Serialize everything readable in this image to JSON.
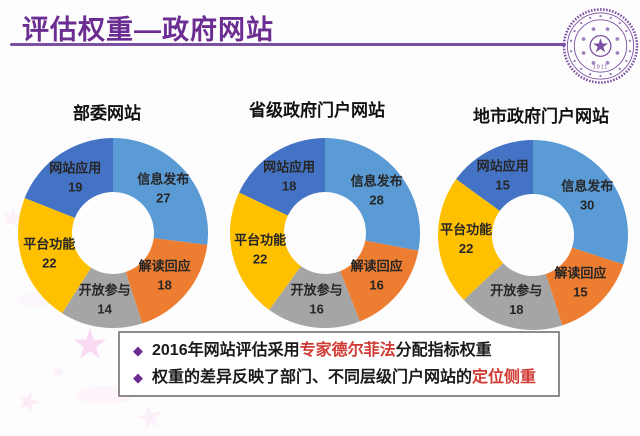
{
  "header": {
    "title": "评估权重—政府网站"
  },
  "logo": {
    "icon": "tsinghua-university-seal",
    "year_text": "1911"
  },
  "colors": {
    "accent_purple": "#6b2d91",
    "underline_purple": "#7a50a3",
    "highlight_red": "#d03a34",
    "chart_title_black": "#111111",
    "slice_label": "#262626",
    "series": {
      "信息发布": "#5B9BD5",
      "解读回应": "#ED7D31",
      "开放参与": "#A5A5A5",
      "平台功能": "#FFC000",
      "网站应用": "#4472C4"
    }
  },
  "chart_data": [
    {
      "type": "pie",
      "subtype": "donut",
      "title": "部委网站",
      "categories": [
        "信息发布",
        "解读回应",
        "开放参与",
        "平台功能",
        "网站应用"
      ],
      "values": [
        27,
        18,
        14,
        22,
        19
      ],
      "colors": [
        "#5B9BD5",
        "#ED7D31",
        "#A5A5A5",
        "#FFC000",
        "#4472C4"
      ],
      "start_angle_deg": 0,
      "direction": "clockwise",
      "labels": "category and value inside slices",
      "legend": "none"
    },
    {
      "type": "pie",
      "subtype": "donut",
      "title": "省级政府门户网站",
      "categories": [
        "信息发布",
        "解读回应",
        "开放参与",
        "平台功能",
        "网站应用"
      ],
      "values": [
        28,
        16,
        16,
        22,
        18
      ],
      "colors": [
        "#5B9BD5",
        "#ED7D31",
        "#A5A5A5",
        "#FFC000",
        "#4472C4"
      ],
      "start_angle_deg": 0,
      "direction": "clockwise",
      "labels": "category and value inside slices",
      "legend": "none"
    },
    {
      "type": "pie",
      "subtype": "donut",
      "title": "地市政府门户网站",
      "categories": [
        "信息发布",
        "解读回应",
        "开放参与",
        "平台功能",
        "网站应用"
      ],
      "values": [
        30,
        15,
        18,
        22,
        15
      ],
      "colors": [
        "#5B9BD5",
        "#ED7D31",
        "#A5A5A5",
        "#FFC000",
        "#4472C4"
      ],
      "start_angle_deg": 0,
      "direction": "clockwise",
      "labels": "category and value inside slices",
      "legend": "none"
    }
  ],
  "note": {
    "bullet_glyph": "◆",
    "bullets": [
      {
        "segments": [
          {
            "text": "2016年网站评估采用",
            "highlight": false
          },
          {
            "text": "专家德尔菲法",
            "highlight": true
          },
          {
            "text": "分配指标权重",
            "highlight": false
          }
        ]
      },
      {
        "segments": [
          {
            "text": "权重的差异反映了部门、不同层级门户网站的",
            "highlight": false
          },
          {
            "text": "定位侧重",
            "highlight": true
          }
        ]
      }
    ]
  }
}
